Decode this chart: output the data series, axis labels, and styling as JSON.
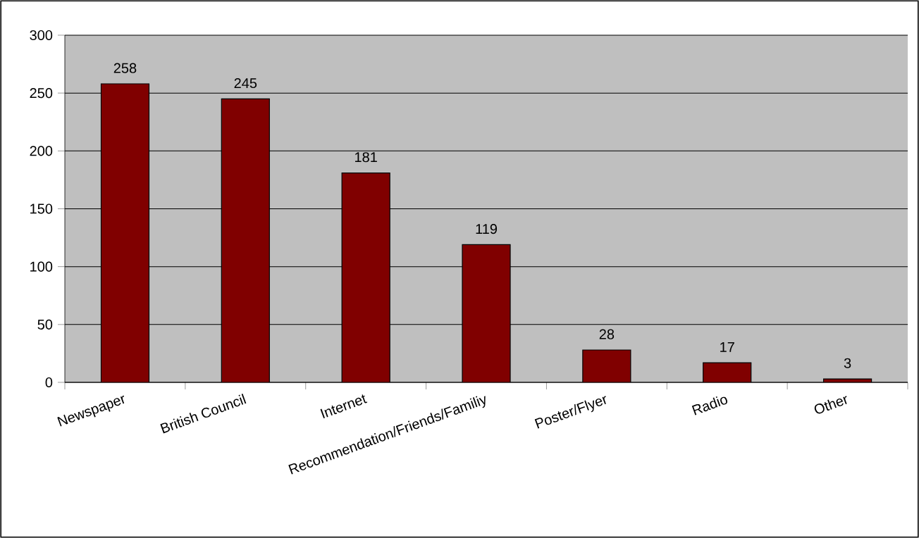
{
  "chart_data": {
    "type": "bar",
    "categories": [
      "Newspaper",
      "British Council",
      "Internet",
      "Recommendation/Friends/Familiy",
      "Poster/Flyer",
      "Radio",
      "Other"
    ],
    "values": [
      258,
      245,
      181,
      119,
      28,
      17,
      3
    ],
    "color": "#800000",
    "ylim": [
      0,
      300
    ],
    "yticks": [
      0,
      50,
      100,
      150,
      200,
      250,
      300
    ],
    "grid": "y",
    "data_labels": true
  }
}
